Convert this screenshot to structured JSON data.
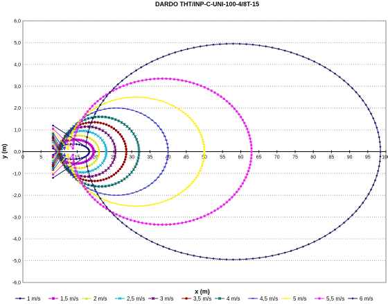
{
  "chart_data": {
    "type": "scatter",
    "title": "DARDO THT/INP-C-UNI-100-4/8T-15",
    "xlabel": "x (m)",
    "ylabel": "y (m)",
    "xlim": [
      0,
      100
    ],
    "ylim": [
      -6,
      6
    ],
    "x_ticks": [
      "0",
      "5",
      "10",
      "15",
      "20",
      "25",
      "30",
      "35",
      "40",
      "45",
      "50",
      "55",
      "60",
      "65",
      "70",
      "75",
      "80",
      "85",
      "90",
      "95",
      "100"
    ],
    "y_ticks": [
      "6,0",
      "5,0",
      "4,0",
      "3,0",
      "2,0",
      "1,0",
      "0,0",
      "-1,0",
      "-2,0",
      "-3,0",
      "-4,0",
      "-5,0",
      "-6,0"
    ],
    "grid": "horizontal",
    "legend": "bottom",
    "series": [
      {
        "name": "1 m/s",
        "color": "#00007f",
        "marker": "diamond",
        "x_origin": 8.3,
        "x_max": 18.3,
        "y_max": 0.35,
        "y_origin": 0.15
      },
      {
        "name": "1,5 m/s",
        "color": "#cc00cc",
        "marker": "square",
        "x_origin": 8.3,
        "x_max": 19.5,
        "y_max": 0.55,
        "y_origin": 0.25
      },
      {
        "name": "2 m/s",
        "color": "#dddd00",
        "marker": "triangle",
        "x_origin": 8.3,
        "x_max": 21.0,
        "y_max": 0.75,
        "y_origin": 0.35
      },
      {
        "name": "2,5 m/s",
        "color": "#00aacc",
        "marker": "cross",
        "x_origin": 8.3,
        "x_max": 23.0,
        "y_max": 0.95,
        "y_origin": 0.45
      },
      {
        "name": "3 m/s",
        "color": "#660066",
        "marker": "star",
        "x_origin": 8.3,
        "x_max": 25.5,
        "y_max": 1.15,
        "y_origin": 0.55
      },
      {
        "name": "3,5 m/s",
        "color": "#990000",
        "marker": "circle",
        "x_origin": 8.3,
        "x_max": 28.5,
        "y_max": 1.35,
        "y_origin": 0.65
      },
      {
        "name": "4 m/s",
        "color": "#006666",
        "marker": "plus",
        "x_origin": 8.3,
        "x_max": 32.0,
        "y_max": 1.6,
        "y_origin": 0.75
      },
      {
        "name": "4,5 m/s",
        "color": "#3333cc",
        "marker": "dash",
        "x_origin": 8.3,
        "x_max": 40.0,
        "y_max": 2.0,
        "y_origin": 0.85
      },
      {
        "name": "5 m/s",
        "color": "#ffee00",
        "marker": "dash",
        "x_origin": 8.3,
        "x_max": 50.0,
        "y_max": 2.5,
        "y_origin": 0.95
      },
      {
        "name": "5,5 m/s",
        "color": "#ee22ee",
        "marker": "circle",
        "x_origin": 8.3,
        "x_max": 63.0,
        "y_max": 3.35,
        "y_origin": 1.05
      },
      {
        "name": "6 m/s",
        "color": "#1a1a66",
        "marker": "diamond",
        "x_origin": 8.3,
        "x_max": 98.5,
        "y_max": 4.95,
        "y_origin": 1.2
      }
    ]
  }
}
